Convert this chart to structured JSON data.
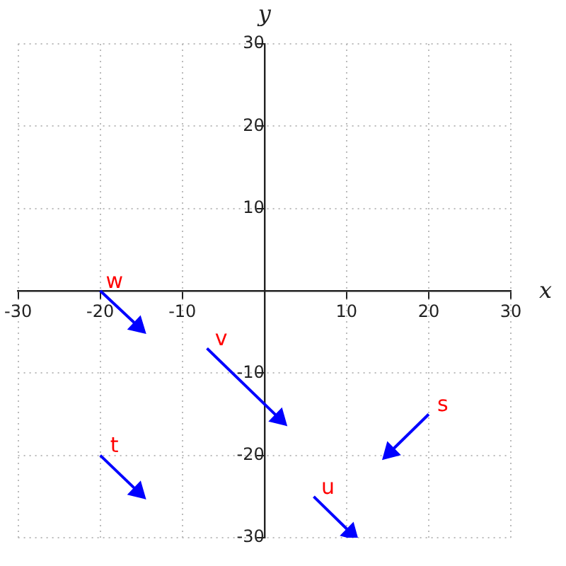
{
  "chart_data": {
    "type": "line",
    "xlabel": "x",
    "ylabel": "y",
    "xlim": [
      -30,
      30
    ],
    "ylim": [
      -30,
      30
    ],
    "xticks": [
      -30,
      -20,
      -10,
      10,
      20,
      30
    ],
    "yticks": [
      -30,
      -20,
      -10,
      10,
      20,
      30
    ],
    "grid": true,
    "marker": "triangle",
    "series": [
      {
        "name": "w",
        "color": "#0000ff",
        "x": [
          -20,
          -15.4
        ],
        "values": [
          0,
          -4.3
        ]
      },
      {
        "name": "t",
        "color": "#0000ff",
        "x": [
          -20,
          -15.4
        ],
        "values": [
          -20,
          -24.4
        ]
      },
      {
        "name": "v",
        "color": "#0000ff",
        "x": [
          -7,
          1.8
        ],
        "values": [
          -7,
          -15.5
        ]
      },
      {
        "name": "s",
        "color": "#0000ff",
        "x": [
          20,
          15.3
        ],
        "values": [
          -15,
          -19.6
        ]
      },
      {
        "name": "u",
        "color": "#0000ff",
        "x": [
          6,
          10.5
        ],
        "values": [
          -25,
          -29.4
        ]
      }
    ]
  }
}
